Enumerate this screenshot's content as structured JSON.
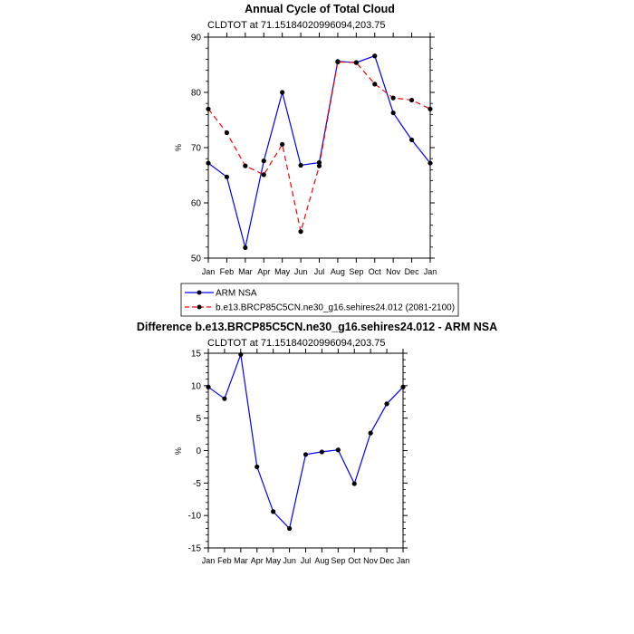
{
  "chart_data": [
    {
      "type": "line",
      "title": "Annual Cycle of Total Cloud",
      "subtitle": "CLDTOT at 71.15184020996094,203.75",
      "ylabel": "%",
      "ylim": [
        50,
        90
      ],
      "yticks": [
        "50",
        "60",
        "70",
        "80",
        "90"
      ],
      "categories": [
        "Jan",
        "Feb",
        "Mar",
        "Apr",
        "May",
        "Jun",
        "Jul",
        "Aug",
        "Sep",
        "Oct",
        "Nov",
        "Dec",
        "Jan"
      ],
      "series": [
        {
          "name": "ARM NSA",
          "color": "#0000ff",
          "dash": "solid",
          "values": [
            67.2,
            64.7,
            51.9,
            67.6,
            80.0,
            66.8,
            67.3,
            85.6,
            85.4,
            86.6,
            76.3,
            71.4,
            67.2
          ]
        },
        {
          "name": "b.e13.BRCP85C5CN.ne30_g16.sehires24.012 (2081-2100)",
          "color": "#ff0000",
          "dash": "dashed",
          "values": [
            77.0,
            72.7,
            66.7,
            65.1,
            70.6,
            54.8,
            66.7,
            85.5,
            85.4,
            81.5,
            79.0,
            78.6,
            77.0
          ]
        }
      ],
      "legend_position": "below"
    },
    {
      "type": "line",
      "title": "Difference b.e13.BRCP85C5CN.ne30_g16.sehires24.012 - ARM NSA",
      "subtitle": "CLDTOT at 71.15184020996094,203.75",
      "ylabel": "%",
      "ylim": [
        -15,
        15
      ],
      "yticks": [
        "-15",
        "-10",
        "-5",
        "0",
        "5",
        "10",
        "15"
      ],
      "categories": [
        "Jan",
        "Feb",
        "Mar",
        "Apr",
        "May",
        "Jun",
        "Jul",
        "Aug",
        "Sep",
        "Oct",
        "Nov",
        "Dec",
        "Jan"
      ],
      "series": [
        {
          "color": "#0000ff",
          "dash": "solid",
          "values": [
            9.8,
            8.0,
            14.8,
            -2.5,
            -9.4,
            -12.0,
            -0.6,
            -0.2,
            0.1,
            -5.1,
            2.7,
            7.2,
            9.8
          ]
        }
      ]
    }
  ]
}
